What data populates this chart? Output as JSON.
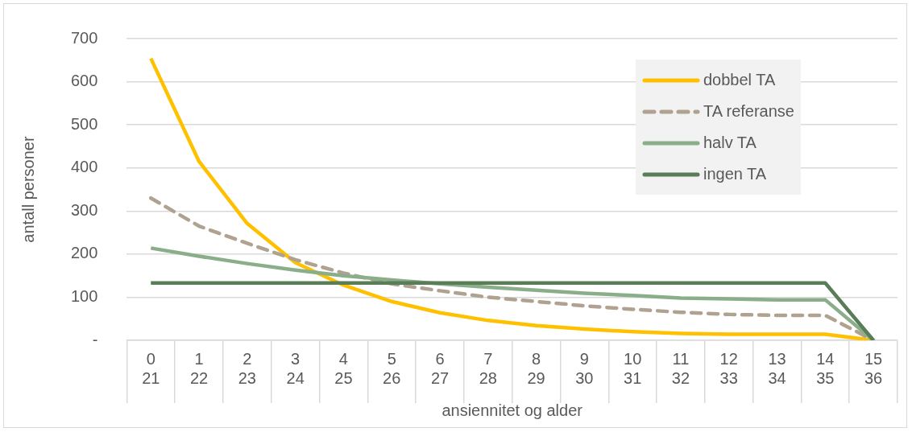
{
  "chart_data": {
    "type": "line",
    "xlabel": "ansiennitet og alder",
    "ylabel": "antall personer",
    "categories": [
      "0\n21",
      "1\n22",
      "2\n23",
      "3\n24",
      "4\n25",
      "5\n26",
      "6\n27",
      "7\n28",
      "8\n29",
      "9\n30",
      "10\n31",
      "11\n32",
      "12\n33",
      "13\n34",
      "14\n35",
      "15\n36"
    ],
    "series": [
      {
        "name": "dobbel TA",
        "color": "#ffc000",
        "values": [
          654,
          415,
          271,
          180,
          128,
          90,
          64,
          46,
          34,
          26,
          20,
          16,
          14,
          14,
          14,
          0
        ]
      },
      {
        "name": "TA referanse",
        "color": "#b0a290",
        "line_style": "dashed",
        "values": [
          330,
          265,
          225,
          187,
          156,
          131,
          115,
          100,
          90,
          80,
          72,
          65,
          60,
          58,
          58,
          0
        ]
      },
      {
        "name": "halv TA",
        "color": "#8aae8a",
        "values": [
          214,
          195,
          178,
          163,
          150,
          140,
          131,
          123,
          116,
          109,
          104,
          98,
          96,
          94,
          94,
          0
        ]
      },
      {
        "name": "ingen TA",
        "color": "#587d57",
        "values": [
          133,
          133,
          133,
          133,
          133,
          133,
          133,
          133,
          133,
          133,
          133,
          133,
          133,
          133,
          133,
          0
        ]
      }
    ],
    "ylim": [
      0,
      700
    ],
    "yticks": [
      {
        "value": 0,
        "label": "-"
      },
      100,
      200,
      300,
      400,
      500,
      600,
      700
    ],
    "grid": "y",
    "legend": "top right",
    "marker": "none",
    "line_style": "solid"
  }
}
